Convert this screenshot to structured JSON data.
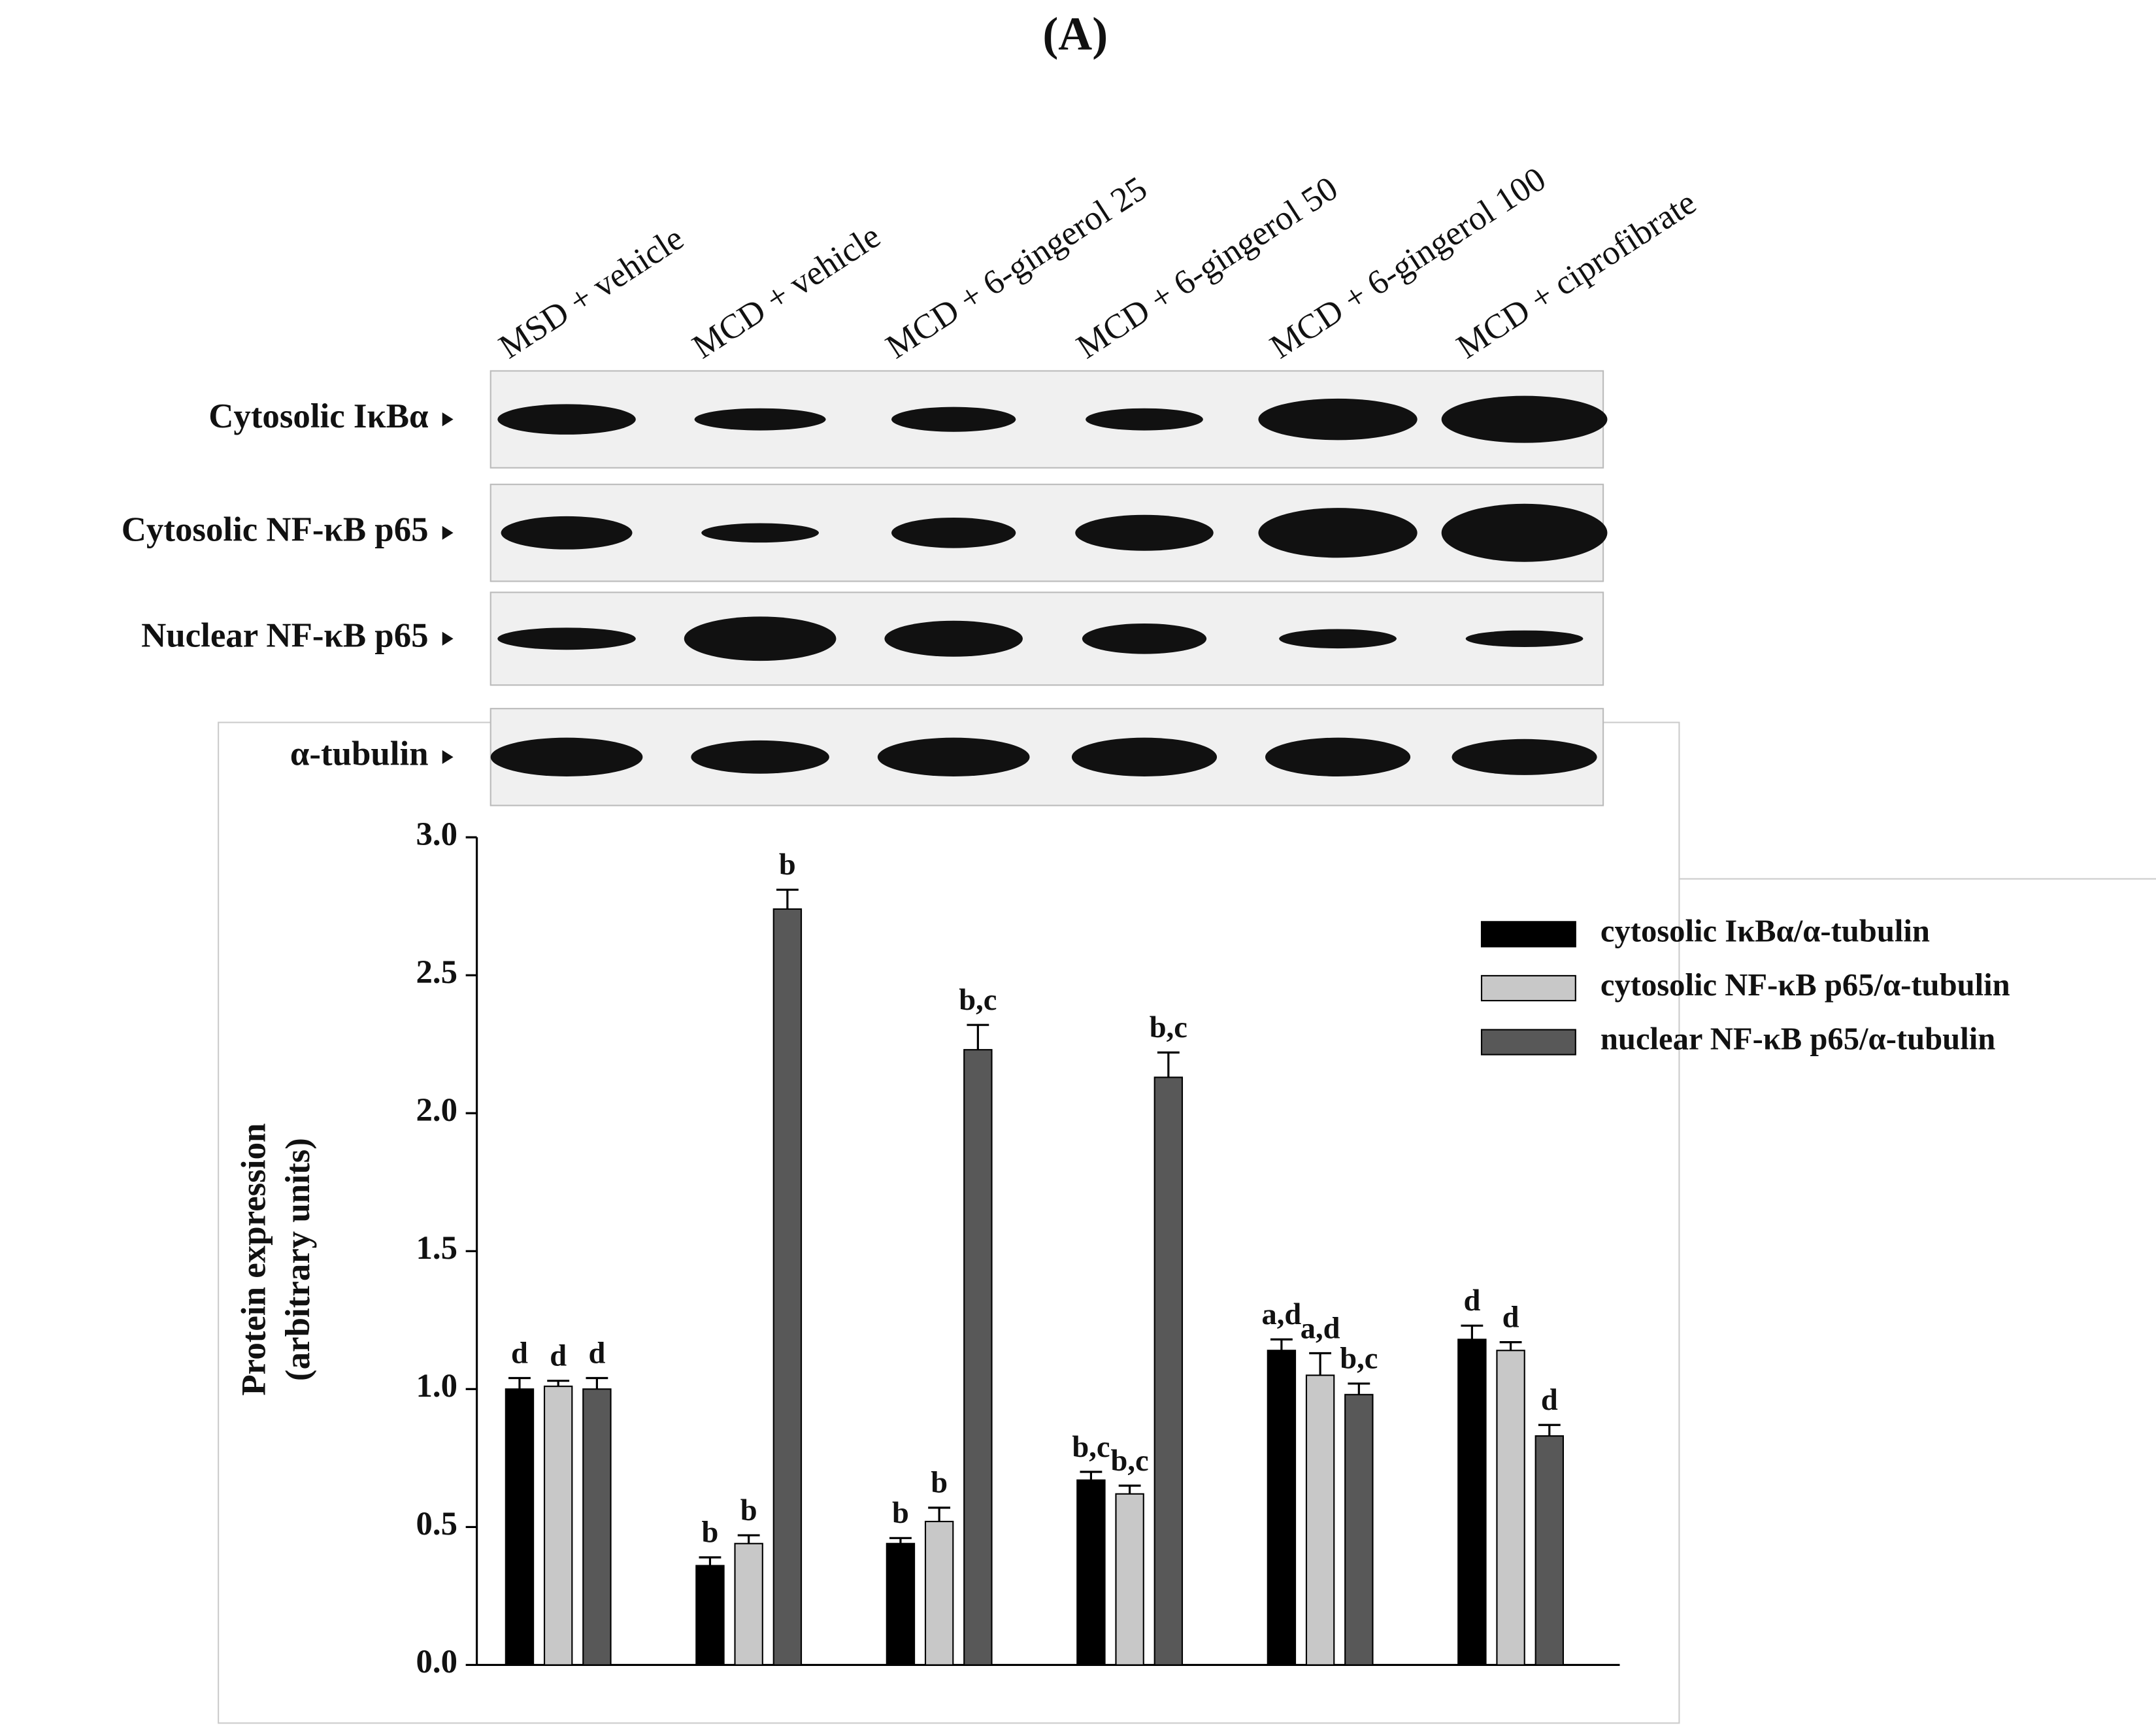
{
  "panel_label": "(A)",
  "blots": {
    "lanes": [
      "MSD + vehicle",
      "MCD + vehicle",
      "MCD + 6-gingerol 25",
      "MCD + 6-gingerol 50",
      "MCD + 6-gingerol 100",
      "MCD + ciprofibrate"
    ],
    "rows": [
      "Cytosolic IκBα",
      "Cytosolic NF-κB p65",
      "Nuclear NF-κB p65",
      "α-tubulin"
    ]
  },
  "chart_data": {
    "type": "bar",
    "y_label": [
      "Protein expression",
      "(arbitrary units)"
    ],
    "categories": [
      "MSD + vehicle",
      "MCD + vehicle",
      "MCD + 6-gingerol 25",
      "MCD + 6-gingerol 50",
      "MCD + 6-gingerol 100",
      "MCD + ciprofibrate"
    ],
    "series": [
      {
        "name": "cytosolic IκBα/α-tubulin",
        "color": "#000000",
        "values": [
          1.0,
          0.36,
          0.44,
          0.67,
          1.14,
          1.18
        ],
        "errors": [
          0.04,
          0.03,
          0.02,
          0.03,
          0.04,
          0.05
        ],
        "letters": [
          "d",
          "b",
          "b",
          "b,c",
          "a,d",
          "d"
        ]
      },
      {
        "name": "cytosolic NF-κB p65/α-tubulin",
        "color": "#c8c8c8",
        "values": [
          1.01,
          0.44,
          0.52,
          0.62,
          1.05,
          1.14
        ],
        "errors": [
          0.02,
          0.03,
          0.05,
          0.03,
          0.08,
          0.03
        ],
        "letters": [
          "d",
          "b",
          "b",
          "b,c",
          "a,d",
          "d"
        ]
      },
      {
        "name": "nuclear NF-κB p65/α-tubulin",
        "color": "#585858",
        "values": [
          1.0,
          2.74,
          2.23,
          2.13,
          0.98,
          0.83
        ],
        "errors": [
          0.04,
          0.07,
          0.09,
          0.09,
          0.04,
          0.04
        ],
        "letters": [
          "d",
          "b",
          "b,c",
          "b,c",
          "b,c",
          "d"
        ]
      }
    ],
    "ylim": [
      0,
      3
    ],
    "yticks": [
      {
        "value": 0,
        "label": "0.0"
      },
      {
        "value": 0.5,
        "label": "0.5"
      },
      {
        "value": 1,
        "label": "1.0"
      },
      {
        "value": 1.5,
        "label": "1.5"
      },
      {
        "value": 2,
        "label": "2.0"
      },
      {
        "value": 2.5,
        "label": "2.5"
      },
      {
        "value": 3,
        "label": "3.0"
      }
    ]
  }
}
